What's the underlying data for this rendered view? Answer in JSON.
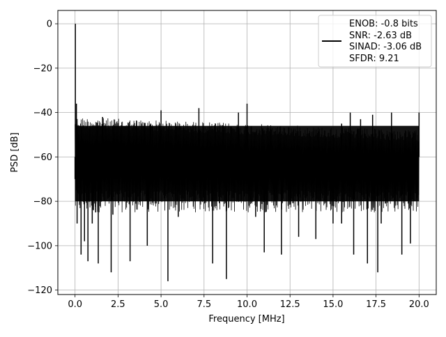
{
  "chart_data": {
    "type": "line",
    "title": "",
    "xlabel": "Frequency [MHz]",
    "ylabel": "PSD [dB]",
    "xlim": [
      -1.0,
      21.0
    ],
    "ylim": [
      -122.0,
      6.0
    ],
    "xticks": [
      0.0,
      2.5,
      5.0,
      7.5,
      10.0,
      12.5,
      15.0,
      17.5,
      20.0
    ],
    "xtick_labels": [
      "0.0",
      "2.5",
      "5.0",
      "7.5",
      "10.0",
      "12.5",
      "15.0",
      "17.5",
      "20.0"
    ],
    "yticks": [
      0,
      -20,
      -40,
      -60,
      -80,
      -100,
      -120
    ],
    "ytick_labels": [
      "0",
      "−20",
      "−40",
      "−60",
      "−80",
      "−100",
      "−120"
    ],
    "grid": true,
    "legend_placement": "top-right",
    "series": [
      {
        "name": "ENOB: -0.8 bits\nSNR: -2.63 dB\nSINAD: -3.06 dB\nSFDR: 9.21",
        "legend_lines": [
          "ENOB: -0.8 bits",
          "SNR: -2.63 dB",
          "SINAD: -3.06 dB",
          "SFDR: 9.21"
        ],
        "color": "#000000",
        "noise_band": {
          "x_start": 0.0,
          "x_end": 20.0,
          "upper_start_db": -42,
          "upper_end_db": -48,
          "lower_db": -80
        },
        "x": [
          0.0,
          0.02,
          0.05,
          0.08,
          0.1,
          0.12,
          0.2,
          0.35,
          0.55,
          0.75,
          1.0,
          1.2,
          1.35,
          1.6,
          2.1,
          2.2,
          2.4,
          3.2,
          4.2,
          4.4,
          5.0,
          5.4,
          6.0,
          7.0,
          7.2,
          7.3,
          8.0,
          8.8,
          9.5,
          10.0,
          10.5,
          11.0,
          12.0,
          13.0,
          14.0,
          15.0,
          15.5,
          15.5,
          16.0,
          16.2,
          16.6,
          17.0,
          17.3,
          17.6,
          17.8,
          18.4,
          19.0,
          19.5,
          20.0
        ],
        "y": [
          -60,
          0,
          -60,
          -36,
          -75,
          -90,
          -50,
          -104,
          -98,
          -107,
          -90,
          -85,
          -108,
          -42,
          -112,
          -86,
          -55,
          -107,
          -100,
          -45,
          -39,
          -116,
          -87,
          -62,
          -38,
          -60,
          -108,
          -115,
          -40,
          -36,
          -87,
          -103,
          -104,
          -96,
          -97,
          -90,
          -45,
          -90,
          -40,
          -104,
          -43,
          -108,
          -41,
          -112,
          -90,
          -40,
          -104,
          -99,
          -40
        ]
      }
    ]
  }
}
